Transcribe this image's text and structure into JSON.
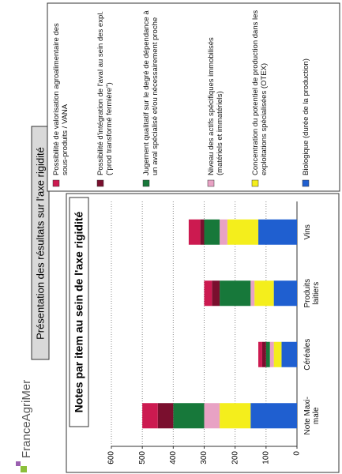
{
  "logo": "FranceAgriMer",
  "slide_title": "Présentation des résultats sur l'axe rigidité",
  "chart_data": {
    "type": "bar",
    "stacked": true,
    "title": "Notes par item au sein de l'axe rigidité",
    "categories": [
      "Note Maxi-male",
      "Céréales",
      "Produits laitiers",
      "Vins"
    ],
    "series": [
      {
        "name": "Possibilité de valorisation agroalimentaire des sous-produits / VANA",
        "color": "#cc1a50",
        "values": [
          50,
          12.5,
          25,
          37.5
        ]
      },
      {
        "name": "Possibilité d'intégration de l'aval au sein des expl. (\"prod transformé fermière\")",
        "color": "#7a0f2e",
        "values": [
          50,
          12.5,
          25,
          12.5
        ]
      },
      {
        "name": "Jugement qualitatif sur le degré de dépendance à un aval spécialisé et/ou nécessairement proche",
        "color": "#17783a",
        "values": [
          100,
          12.5,
          100,
          50
        ]
      },
      {
        "name": "Niveau des actifs spécifiques immobilisés (matériels et immatériels)",
        "color": "#e8a2c4",
        "values": [
          50,
          12.5,
          12.5,
          25
        ]
      },
      {
        "name": "Concentration du potentiel de production dans les exploitations spécialisées (OTEX)",
        "color": "#f4ee1c",
        "values": [
          100,
          25,
          62.5,
          100
        ]
      },
      {
        "name": "Biologique (durée de la production)",
        "color": "#1f5fd0",
        "values": [
          150,
          50,
          75,
          125
        ]
      }
    ],
    "ylim": [
      0,
      600
    ],
    "yticks": [
      0,
      100,
      200,
      300,
      400,
      500,
      600
    ],
    "grid": true
  }
}
